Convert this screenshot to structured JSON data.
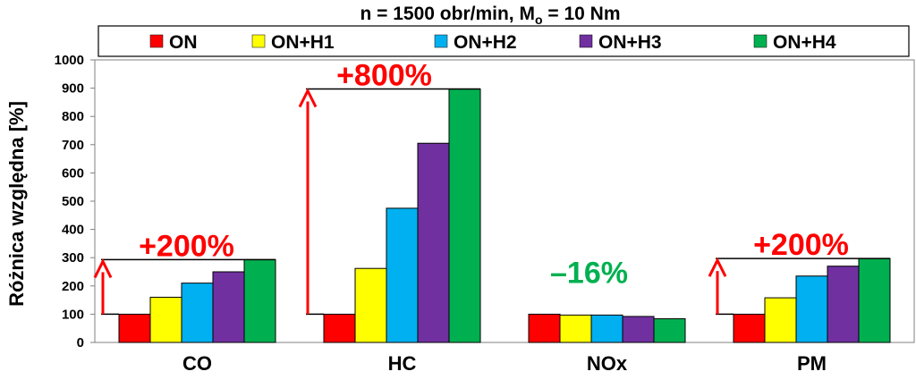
{
  "chart_data": {
    "type": "bar",
    "title_main": "n = 1500 obr/min, M",
    "title_sub": "o",
    "title_tail": " = 10 Nm",
    "ylabel": "Różnica względna [%]",
    "ylim": [
      0,
      1000
    ],
    "yticks": [
      "0",
      "100",
      "200",
      "300",
      "400",
      "500",
      "600",
      "700",
      "800",
      "900",
      "1000"
    ],
    "grid": false,
    "legend_position": "top",
    "categories": [
      "CO",
      "HC",
      "NOx",
      "PM"
    ],
    "series": [
      {
        "name": "ON",
        "color": "#ff0000",
        "values": [
          100,
          100,
          100,
          100
        ]
      },
      {
        "name": "ON+H1",
        "color": "#ffff00",
        "values": [
          160,
          262,
          97,
          158
        ]
      },
      {
        "name": "ON+H2",
        "color": "#00b0f0",
        "values": [
          210,
          475,
          97,
          235
        ]
      },
      {
        "name": "ON+H3",
        "color": "#7030a0",
        "values": [
          250,
          705,
          92,
          270
        ]
      },
      {
        "name": "ON+H4",
        "color": "#00b050",
        "values": [
          293,
          897,
          84,
          297
        ]
      }
    ],
    "annotations": [
      {
        "text": "+200%",
        "color": "#ff0000",
        "category": "CO"
      },
      {
        "text": "+800%",
        "color": "#ff0000",
        "category": "HC"
      },
      {
        "text": "–16%",
        "color": "#00b050",
        "category": "NOx"
      },
      {
        "text": "+200%",
        "color": "#ff0000",
        "category": "PM"
      }
    ]
  }
}
